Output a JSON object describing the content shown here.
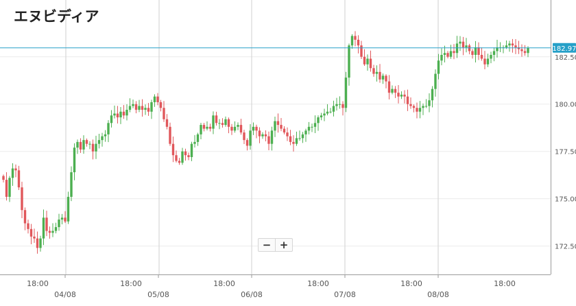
{
  "title": "エヌビディア",
  "zoom": {
    "out_label": "−",
    "in_label": "+"
  },
  "chart_data": {
    "type": "candlestick",
    "title": "エヌビディア",
    "ylim": [
      171.0,
      185.5
    ],
    "yticks": [
      "172.50",
      "175.00",
      "177.50",
      "180.00",
      "182.50"
    ],
    "y_axis_side": "right",
    "grid": true,
    "current_price": "182.97",
    "current_price_value": 182.97,
    "colors": {
      "up": "#4caf50",
      "down": "#e0575b",
      "line": "#26a0c8",
      "grid": "#ececec",
      "session": "#cfcfcf",
      "tag": "#26a0c8"
    },
    "x_labels": [
      {
        "label": "18:00",
        "row": 1
      },
      {
        "label": "04/08",
        "row": 2
      },
      {
        "label": "18:00",
        "row": 1
      },
      {
        "label": "05/08",
        "row": 2
      },
      {
        "label": "18:00",
        "row": 1
      },
      {
        "label": "06/08",
        "row": 2
      },
      {
        "label": "18:00",
        "row": 1
      },
      {
        "label": "07/08",
        "row": 2
      },
      {
        "label": "18:00",
        "row": 1
      },
      {
        "label": "08/08",
        "row": 2
      },
      {
        "label": "18:00",
        "row": 1
      }
    ],
    "closes": [
      176.0,
      175.1,
      176.1,
      176.6,
      176.5,
      175.6,
      174.4,
      173.7,
      173.4,
      173.0,
      172.9,
      172.4,
      172.9,
      174.0,
      173.3,
      173.2,
      173.3,
      173.5,
      173.9,
      174.0,
      173.8,
      175.1,
      176.4,
      177.7,
      178.0,
      177.6,
      178.1,
      177.9,
      177.9,
      177.5,
      177.9,
      178.1,
      178.3,
      178.4,
      179.0,
      179.4,
      179.5,
      179.3,
      179.6,
      179.4,
      179.7,
      179.9,
      180.0,
      179.7,
      179.9,
      179.7,
      179.8,
      179.6,
      180.1,
      180.4,
      180.1,
      179.8,
      179.2,
      178.8,
      177.9,
      177.3,
      177.0,
      176.9,
      177.5,
      177.3,
      177.2,
      177.9,
      178.0,
      178.4,
      178.9,
      178.7,
      178.8,
      178.7,
      179.4,
      179.0,
      179.0,
      178.9,
      179.2,
      178.8,
      178.6,
      178.8,
      178.9,
      178.5,
      178.1,
      177.8,
      178.6,
      178.8,
      178.6,
      178.3,
      178.4,
      178.3,
      177.9,
      178.6,
      179.1,
      178.9,
      178.7,
      178.5,
      178.3,
      178.0,
      177.9,
      178.2,
      178.2,
      178.4,
      178.6,
      178.8,
      178.8,
      179.0,
      179.3,
      179.4,
      179.5,
      179.6,
      179.6,
      179.9,
      180.0,
      180.0,
      179.8,
      181.4,
      183.1,
      183.6,
      183.4,
      183.1,
      182.5,
      182.1,
      182.4,
      181.9,
      181.6,
      181.7,
      181.3,
      181.5,
      181.2,
      180.6,
      180.8,
      180.6,
      180.4,
      180.5,
      180.4,
      180.0,
      179.9,
      179.8,
      179.6,
      179.8,
      179.9,
      179.9,
      180.2,
      180.8,
      181.6,
      182.3,
      182.6,
      182.7,
      182.5,
      182.8,
      182.7,
      183.2,
      183.3,
      183.0,
      183.1,
      182.8,
      182.6,
      183.0,
      182.6,
      182.4,
      182.1,
      182.4,
      182.6,
      182.8,
      183.0,
      183.0,
      183.0,
      183.1,
      183.2,
      183.1,
      183.0,
      182.9,
      182.8,
      182.7,
      182.97
    ]
  }
}
